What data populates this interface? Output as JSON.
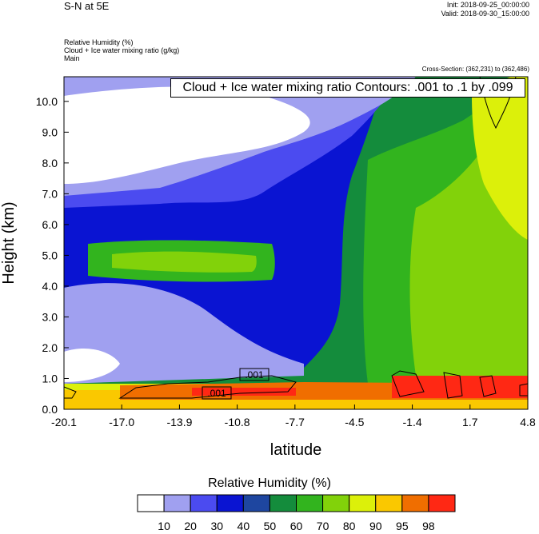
{
  "header": {
    "title": "S-N at 5E",
    "init": "Init: 2018-09-25_00:00:00",
    "valid": "Valid: 2018-09-30_15:00:00"
  },
  "subtitle": {
    "line1": "Relative Humidity   (%)",
    "line2": "Cloud + Ice water mixing ratio   (g/kg)",
    "line3": "Main"
  },
  "cross_section": "Cross-Section: (362,231) to (362,486)",
  "contour_info": "Cloud + Ice water mixing ratio Contours: .001 to .1 by .099",
  "contour_labels": [
    ".001",
    ".001"
  ],
  "chart_data": {
    "type": "heatmap",
    "xlabel": "latitude",
    "ylabel": "Height (km)",
    "x_ticks": [
      "-20.1",
      "-17.0",
      "-13.9",
      "-10.8",
      "-7.7",
      "-4.5",
      "-1.4",
      "1.7",
      "4.8"
    ],
    "y_ticks": [
      "0.0",
      "1.0",
      "2.0",
      "3.0",
      "4.0",
      "5.0",
      "6.0",
      "7.0",
      "8.0",
      "9.0",
      "10.0"
    ],
    "xlim": [
      -20.1,
      4.8
    ],
    "ylim": [
      0.0,
      10.8
    ],
    "colorbar": {
      "title": "Relative Humidity  (%)",
      "labels": [
        "10",
        "20",
        "30",
        "40",
        "50",
        "60",
        "70",
        "80",
        "90",
        "95",
        "98"
      ],
      "colors": [
        "#ffffff",
        "#a0a0f0",
        "#4b4bf0",
        "#0a14d2",
        "#1e46a0",
        "#148c3c",
        "#32b41e",
        "#82d20a",
        "#dcf00a",
        "#fac800",
        "#f06e00",
        "#ff2814"
      ]
    }
  }
}
